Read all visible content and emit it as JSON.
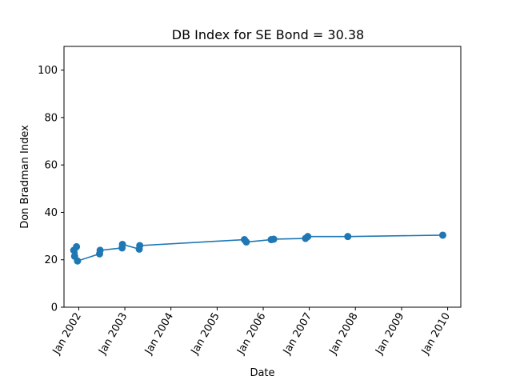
{
  "chart_data": {
    "type": "line",
    "title": "DB Index for SE Bond = 30.38",
    "xlabel": "Date",
    "ylabel": "Don Bradman Index",
    "ylim": [
      0,
      110
    ],
    "yticks": [
      0,
      20,
      40,
      60,
      80,
      100
    ],
    "xlim": [
      "2001-09-06",
      "2010-04-15"
    ],
    "xticks": [
      {
        "date": "2002-01-01",
        "label": "Jan 2002"
      },
      {
        "date": "2003-01-01",
        "label": "Jan 2003"
      },
      {
        "date": "2004-01-01",
        "label": "Jan 2004"
      },
      {
        "date": "2005-01-01",
        "label": "Jan 2005"
      },
      {
        "date": "2006-01-01",
        "label": "Jan 2006"
      },
      {
        "date": "2007-01-01",
        "label": "Jan 2007"
      },
      {
        "date": "2008-01-01",
        "label": "Jan 2008"
      },
      {
        "date": "2009-01-01",
        "label": "Jan 2009"
      },
      {
        "date": "2010-01-01",
        "label": "Jan 2010"
      }
    ],
    "grid": false,
    "color": "#1f77b4",
    "series": [
      {
        "marker": "circle",
        "points": [
          {
            "x": "2001-11-22",
            "y": 24.0
          },
          {
            "x": "2001-11-29",
            "y": 21.5
          },
          {
            "x": "2001-12-14",
            "y": 25.5
          },
          {
            "x": "2001-12-22",
            "y": 19.5
          },
          {
            "x": "2002-06-15",
            "y": 22.5
          },
          {
            "x": "2002-06-19",
            "y": 24.0
          },
          {
            "x": "2002-12-10",
            "y": 25.0
          },
          {
            "x": "2002-12-13",
            "y": 26.5
          },
          {
            "x": "2003-04-25",
            "y": 24.5
          },
          {
            "x": "2003-04-29",
            "y": 26.0
          },
          {
            "x": "2005-08-05",
            "y": 28.5
          },
          {
            "x": "2005-08-20",
            "y": 27.5
          },
          {
            "x": "2006-03-05",
            "y": 28.5
          },
          {
            "x": "2006-03-25",
            "y": 28.7
          },
          {
            "x": "2006-12-02",
            "y": 29.0
          },
          {
            "x": "2006-12-20",
            "y": 29.8
          },
          {
            "x": "2007-11-02",
            "y": 29.8
          },
          {
            "x": "2009-11-23",
            "y": 30.38
          }
        ]
      }
    ]
  }
}
